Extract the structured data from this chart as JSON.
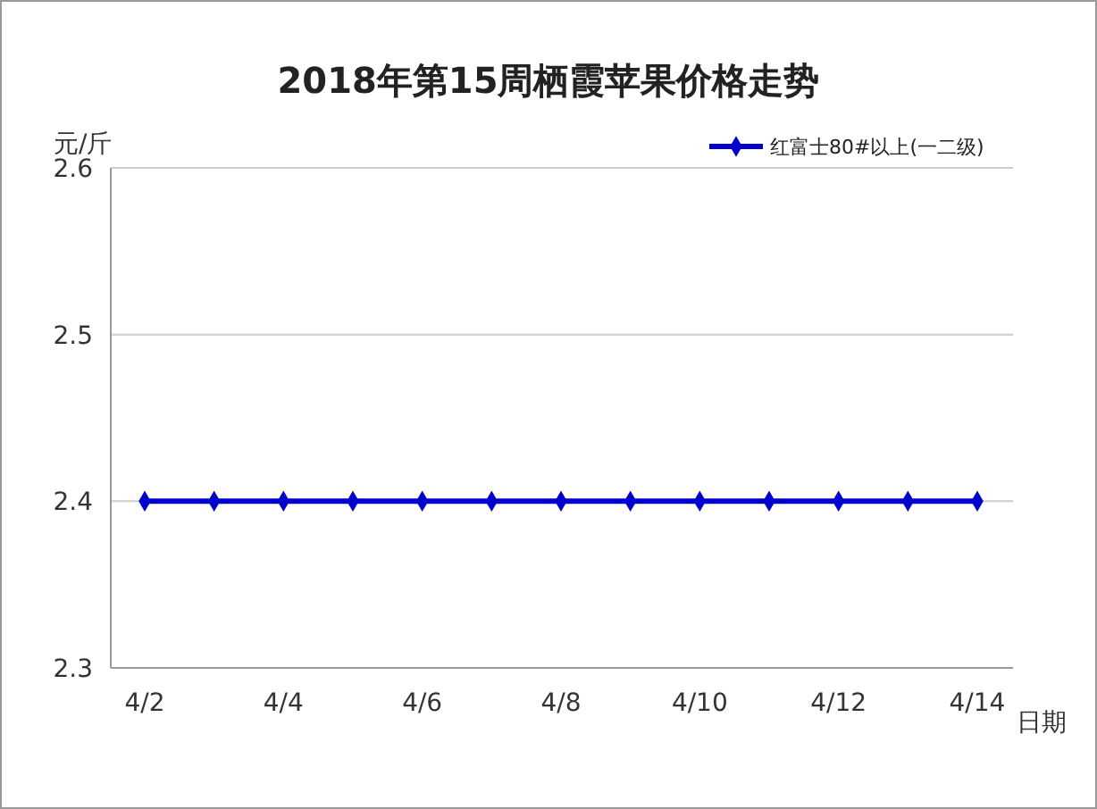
{
  "chart_data": {
    "type": "line",
    "title": "2018年第15周栖霞苹果价格走势",
    "ylabel": "元/斤",
    "xlabel": "日期",
    "categories": [
      "4/2",
      null,
      "4/4",
      null,
      "4/6",
      null,
      "4/8",
      null,
      "4/10",
      null,
      "4/12",
      null,
      "4/14"
    ],
    "series": [
      {
        "name": "红富士80#以上(一二级)",
        "color": "#0000cc",
        "values": [
          2.4,
          2.4,
          2.4,
          2.4,
          2.4,
          2.4,
          2.4,
          2.4,
          2.4,
          2.4,
          2.4,
          2.4,
          2.4
        ]
      }
    ],
    "ylim": [
      2.3,
      2.6
    ],
    "yticks": [
      2.3,
      2.4,
      2.5,
      2.6
    ],
    "grid": "y",
    "legend": "top right",
    "marker": "diamond",
    "line_style": "solid"
  }
}
